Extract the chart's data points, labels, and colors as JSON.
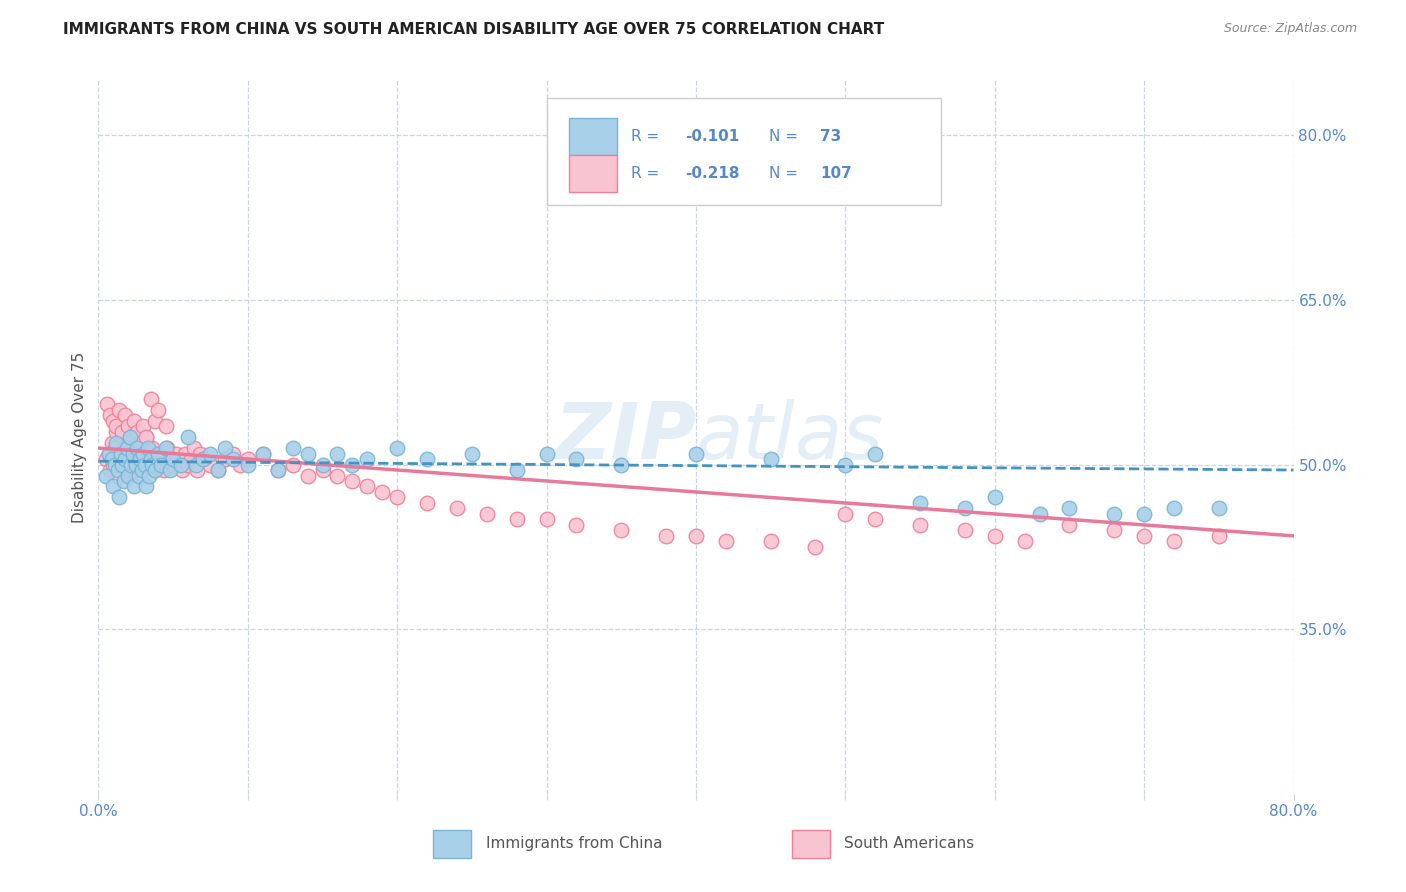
{
  "title": "IMMIGRANTS FROM CHINA VS SOUTH AMERICAN DISABILITY AGE OVER 75 CORRELATION CHART",
  "source": "Source: ZipAtlas.com",
  "ylabel": "Disability Age Over 75",
  "xmin": 0.0,
  "xmax": 0.8,
  "ymin": 0.2,
  "ymax": 0.85,
  "yticks": [
    0.35,
    0.5,
    0.65,
    0.8
  ],
  "ytick_labels": [
    "35.0%",
    "50.0%",
    "65.0%",
    "80.0%"
  ],
  "xticks": [
    0.0,
    0.1,
    0.2,
    0.3,
    0.4,
    0.5,
    0.6,
    0.7,
    0.8
  ],
  "xtick_labels": [
    "0.0%",
    "",
    "",
    "",
    "",
    "",
    "",
    "",
    "80.0%"
  ],
  "china_color": "#a8d0e8",
  "china_edge_color": "#7ab5d5",
  "sa_color": "#f9c4d2",
  "sa_edge_color": "#f08098",
  "china_line_color": "#4393c3",
  "sa_line_color": "#e8799a",
  "watermark": "ZIPatlas",
  "background_color": "#ffffff",
  "grid_color": "#c8d4e8",
  "title_color": "#222222",
  "axis_label_color": "#555555",
  "tick_color": "#5588cc",
  "legend_text_color": "#5588cc",
  "legend_R_val_color": "#5588cc",
  "legend_N_val_color": "#5588cc",
  "source_color": "#888888",
  "china_scatter_x": [
    0.005,
    0.007,
    0.009,
    0.01,
    0.011,
    0.012,
    0.013,
    0.014,
    0.015,
    0.016,
    0.017,
    0.018,
    0.019,
    0.02,
    0.021,
    0.022,
    0.023,
    0.024,
    0.025,
    0.026,
    0.027,
    0.028,
    0.029,
    0.03,
    0.031,
    0.032,
    0.033,
    0.034,
    0.035,
    0.036,
    0.038,
    0.04,
    0.042,
    0.045,
    0.048,
    0.05,
    0.055,
    0.06,
    0.065,
    0.07,
    0.075,
    0.08,
    0.085,
    0.09,
    0.1,
    0.11,
    0.12,
    0.13,
    0.14,
    0.15,
    0.16,
    0.17,
    0.18,
    0.2,
    0.22,
    0.25,
    0.28,
    0.3,
    0.32,
    0.35,
    0.4,
    0.45,
    0.5,
    0.52,
    0.55,
    0.58,
    0.6,
    0.63,
    0.65,
    0.68,
    0.7,
    0.72,
    0.75
  ],
  "china_scatter_y": [
    0.49,
    0.51,
    0.505,
    0.48,
    0.5,
    0.52,
    0.495,
    0.47,
    0.51,
    0.5,
    0.485,
    0.505,
    0.515,
    0.49,
    0.525,
    0.5,
    0.51,
    0.48,
    0.5,
    0.515,
    0.49,
    0.505,
    0.495,
    0.51,
    0.5,
    0.48,
    0.515,
    0.49,
    0.505,
    0.5,
    0.495,
    0.51,
    0.5,
    0.515,
    0.495,
    0.505,
    0.5,
    0.525,
    0.5,
    0.505,
    0.51,
    0.495,
    0.515,
    0.505,
    0.5,
    0.51,
    0.495,
    0.515,
    0.51,
    0.5,
    0.51,
    0.5,
    0.505,
    0.515,
    0.505,
    0.51,
    0.495,
    0.51,
    0.505,
    0.5,
    0.51,
    0.505,
    0.5,
    0.51,
    0.465,
    0.46,
    0.47,
    0.455,
    0.46,
    0.455,
    0.455,
    0.46,
    0.46
  ],
  "sa_scatter_x": [
    0.005,
    0.007,
    0.008,
    0.009,
    0.01,
    0.011,
    0.012,
    0.013,
    0.014,
    0.015,
    0.016,
    0.017,
    0.018,
    0.019,
    0.02,
    0.021,
    0.022,
    0.023,
    0.024,
    0.025,
    0.026,
    0.027,
    0.028,
    0.029,
    0.03,
    0.031,
    0.032,
    0.033,
    0.034,
    0.035,
    0.036,
    0.037,
    0.038,
    0.039,
    0.04,
    0.042,
    0.044,
    0.046,
    0.048,
    0.05,
    0.052,
    0.054,
    0.056,
    0.058,
    0.06,
    0.062,
    0.064,
    0.066,
    0.068,
    0.07,
    0.075,
    0.08,
    0.085,
    0.09,
    0.095,
    0.1,
    0.11,
    0.12,
    0.13,
    0.14,
    0.15,
    0.16,
    0.17,
    0.18,
    0.19,
    0.2,
    0.22,
    0.24,
    0.26,
    0.28,
    0.3,
    0.32,
    0.35,
    0.38,
    0.4,
    0.42,
    0.45,
    0.48,
    0.5,
    0.52,
    0.55,
    0.58,
    0.6,
    0.62,
    0.65,
    0.68,
    0.7,
    0.72,
    0.75,
    0.006,
    0.008,
    0.01,
    0.012,
    0.014,
    0.016,
    0.018,
    0.02,
    0.022,
    0.024,
    0.026,
    0.028,
    0.03,
    0.032,
    0.035,
    0.038,
    0.04,
    0.045
  ],
  "sa_scatter_y": [
    0.505,
    0.51,
    0.495,
    0.52,
    0.5,
    0.515,
    0.53,
    0.49,
    0.51,
    0.5,
    0.525,
    0.505,
    0.515,
    0.495,
    0.51,
    0.525,
    0.5,
    0.515,
    0.505,
    0.495,
    0.51,
    0.52,
    0.505,
    0.51,
    0.515,
    0.5,
    0.525,
    0.505,
    0.51,
    0.5,
    0.515,
    0.505,
    0.495,
    0.51,
    0.5,
    0.51,
    0.495,
    0.515,
    0.505,
    0.5,
    0.51,
    0.5,
    0.495,
    0.51,
    0.5,
    0.505,
    0.515,
    0.495,
    0.51,
    0.505,
    0.5,
    0.495,
    0.505,
    0.51,
    0.5,
    0.505,
    0.51,
    0.495,
    0.5,
    0.49,
    0.495,
    0.49,
    0.485,
    0.48,
    0.475,
    0.47,
    0.465,
    0.46,
    0.455,
    0.45,
    0.45,
    0.445,
    0.44,
    0.435,
    0.435,
    0.43,
    0.43,
    0.425,
    0.455,
    0.45,
    0.445,
    0.44,
    0.435,
    0.43,
    0.445,
    0.44,
    0.435,
    0.43,
    0.435,
    0.555,
    0.545,
    0.54,
    0.535,
    0.55,
    0.53,
    0.545,
    0.535,
    0.525,
    0.54,
    0.53,
    0.52,
    0.535,
    0.525,
    0.56,
    0.54,
    0.55,
    0.535
  ]
}
